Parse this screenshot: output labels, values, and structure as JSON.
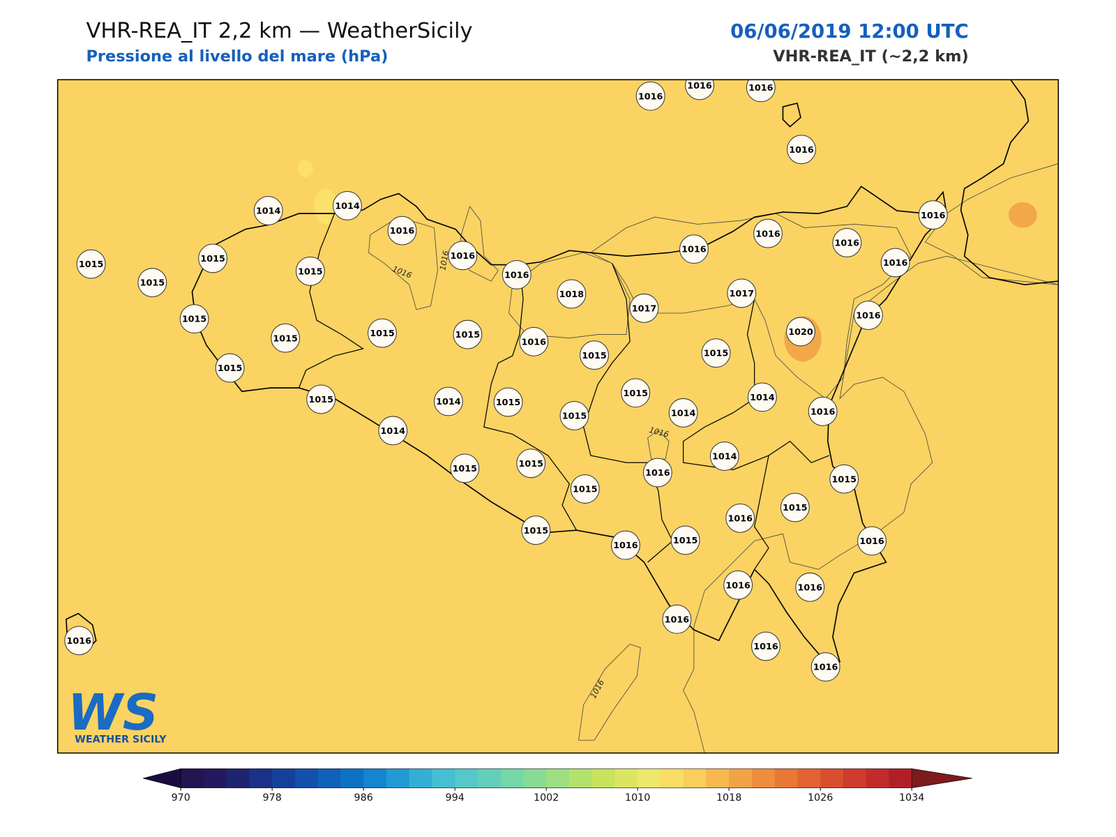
{
  "header": {
    "title": "VHR-REA_IT 2,2 km — WeatherSicily",
    "subtitle": "Pressione al livello del mare (hPa)",
    "date": "06/06/2019 12:00 UTC",
    "model": "VHR-REA_IT (~2,2 km)"
  },
  "stations": {
    "values": [
      1016,
      1016,
      1016,
      1016,
      1014,
      1014,
      1016,
      1016,
      1016,
      1016,
      1016,
      1016,
      1016,
      1015,
      1015,
      1015,
      1015,
      1016,
      1018,
      1017,
      1017,
      1016,
      1015,
      1015,
      1015,
      1015,
      1016,
      1015,
      1020,
      1015,
      1015,
      1015,
      1014,
      1015,
      1015,
      1015,
      1014,
      1014,
      1016,
      1014,
      1015,
      1015,
      1016,
      1014,
      1015,
      1015,
      1016,
      1015,
      1015,
      1016,
      1015,
      1016,
      1016,
      1016,
      1016,
      1016,
      1016,
      1016
    ]
  },
  "contour_labels": [
    1016,
    1016,
    1016,
    1016
  ],
  "logo": {
    "mark": "WS",
    "text": "WEATHER SICILY"
  },
  "colorbar": {
    "lim": [
      970,
      1034
    ],
    "ticks": [
      970,
      978,
      986,
      994,
      1002,
      1010,
      1018,
      1026,
      1034
    ],
    "under_color": "#1a0c40",
    "over_color": "#7d1b1d",
    "colors": [
      "#221552",
      "#24195e",
      "#1e2470",
      "#1b3187",
      "#15409a",
      "#1250ac",
      "#0f61bb",
      "#0b72c6",
      "#1485cf",
      "#219ad4",
      "#33afd6",
      "#45bfd2",
      "#55c8c8",
      "#63cfba",
      "#74d6a9",
      "#88db95",
      "#9ddf80",
      "#b3e26c",
      "#c8e35e",
      "#dbe562",
      "#ece86c",
      "#f9dd66",
      "#fbcd5a",
      "#f6b84f",
      "#f2a345",
      "#ee8e3c",
      "#e97836",
      "#e26331",
      "#d84f2e",
      "#cd3c2c",
      "#c12c2b",
      "#b01f28"
    ]
  }
}
